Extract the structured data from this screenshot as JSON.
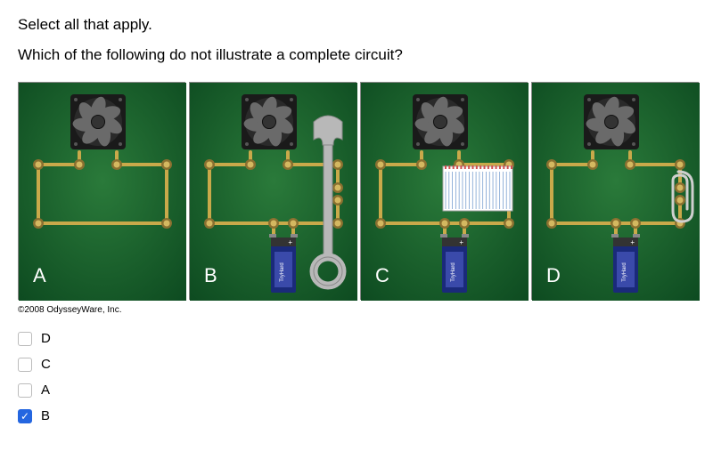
{
  "instruction": "Select all that apply.",
  "question": "Which of the following do not illustrate a complete circuit?",
  "copyright": "©2008 OdysseyWare, Inc.",
  "panels": {
    "labels": [
      "A",
      "B",
      "C",
      "D"
    ],
    "board_gradient_inner": "#2a7a3a",
    "board_gradient_outer": "#0d4a20",
    "wire_color": "#c9a94a",
    "node_outer": "#8a7030",
    "node_inner": "#d4b860",
    "fan_housing": "#1a1a1a",
    "fan_blade": "#6a6a6a",
    "fan_hub": "#333333",
    "battery_body": "#1a2a7a",
    "battery_top": "#333333",
    "battery_label_stripe": "#3a4aaa",
    "wrench_color": "#b8b8b8",
    "notepad_bg": "#ffffff",
    "notepad_lines": "#7aa0d0",
    "notepad_binding": "#d05050",
    "paperclip_color": "#cfcfcf",
    "label_bg_opacity": "0.0",
    "label_color": "#ffffff",
    "label_fontsize": 22
  },
  "options": [
    {
      "label": "D",
      "checked": false
    },
    {
      "label": "C",
      "checked": false
    },
    {
      "label": "A",
      "checked": false
    },
    {
      "label": "B",
      "checked": true
    }
  ]
}
